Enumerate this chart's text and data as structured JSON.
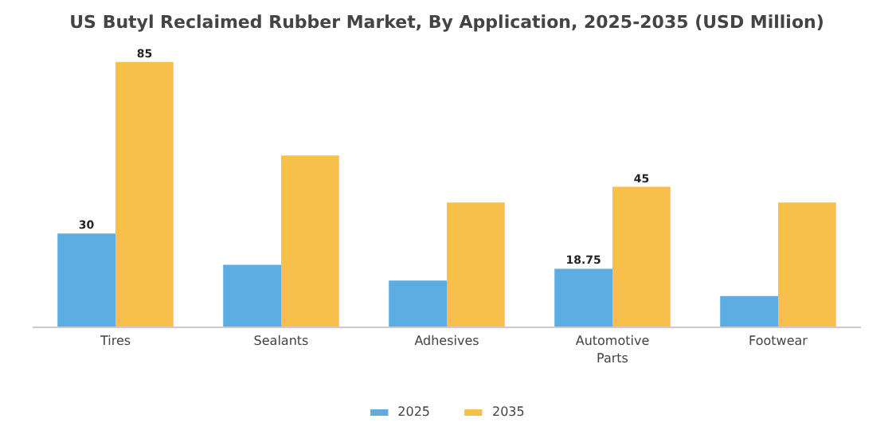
{
  "chart_data": {
    "type": "bar",
    "title": "US Butyl Reclaimed Rubber Market, By Application, 2025-2035 (USD Million)",
    "categories": [
      "Tires",
      "Sealants",
      "Adhesives",
      "Automotive\nParts",
      "Footwear"
    ],
    "series": [
      {
        "name": "2025",
        "color": "#5dade2",
        "values": [
          30,
          20,
          15,
          18.75,
          10
        ],
        "value_labels": [
          "30",
          null,
          null,
          "18.75",
          null
        ]
      },
      {
        "name": "2035",
        "color": "#f7c04a",
        "values": [
          85,
          55,
          40,
          45,
          40
        ],
        "value_labels": [
          "85",
          null,
          null,
          "45",
          null
        ]
      }
    ],
    "tick_labels": "x",
    "legend": "bottom"
  }
}
